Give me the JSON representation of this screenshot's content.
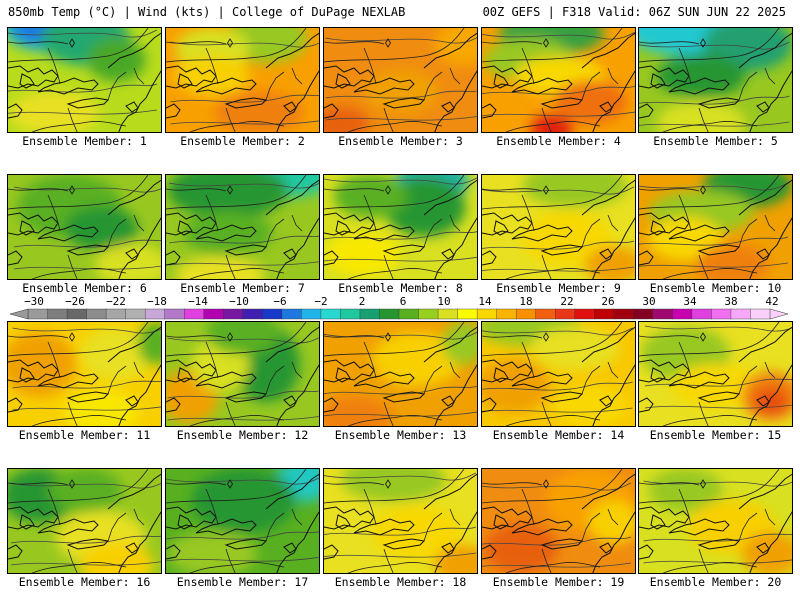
{
  "header": {
    "left": "850mb Temp (°C) | Wind (kts) | College of DuPage NEXLAB",
    "right": "00Z GEFS | F318 Valid: 06Z SUN JUN 22 2025"
  },
  "colorbar": {
    "tick_labels": [
      "−30",
      "−26",
      "−22",
      "−18",
      "−14",
      "−10",
      "−6",
      "−2",
      "2",
      "6",
      "10",
      "14",
      "18",
      "22",
      "26",
      "30",
      "34",
      "38",
      "42"
    ],
    "colors": [
      "#9a9a9a",
      "#7e7e7e",
      "#686868",
      "#8c8c8c",
      "#a6a6a6",
      "#b0b0b0",
      "#c8a8d8",
      "#b478c8",
      "#e040e0",
      "#b000b0",
      "#7818a0",
      "#4020b0",
      "#1838c8",
      "#1e78e0",
      "#20b4e8",
      "#28d8d0",
      "#20c8a0",
      "#18a070",
      "#289630",
      "#58b020",
      "#98d020",
      "#d8e020",
      "#fcfc00",
      "#f8d800",
      "#f8b400",
      "#f89000",
      "#f06010",
      "#e83818",
      "#e01010",
      "#c00000",
      "#a00010",
      "#840020",
      "#a00870",
      "#c800b0",
      "#e040e0",
      "#f070f0",
      "#f8a8f8",
      "#f8d0f8"
    ]
  },
  "panels": [
    {
      "label": "Ensemble Member: 1",
      "base": "#b8dc1c",
      "blobs": [
        [
          "#18b4c8",
          0.3,
          0.0,
          0.6,
          0.35
        ],
        [
          "#1e78e0",
          0.25,
          0.0,
          0.35,
          0.2
        ],
        [
          "#20a870",
          0.5,
          0.1,
          0.5,
          0.4
        ],
        [
          "#48a828",
          0.7,
          0.3,
          0.3,
          0.3
        ],
        [
          "#e8e020",
          0.3,
          0.8,
          0.5,
          0.3
        ]
      ]
    },
    {
      "label": "Ensemble Member: 2",
      "base": "#f8a000",
      "blobs": [
        [
          "#98c820",
          0.65,
          0.1,
          0.45,
          0.35
        ],
        [
          "#d8e020",
          0.3,
          0.2,
          0.4,
          0.3
        ],
        [
          "#f8d000",
          0.3,
          0.45,
          0.4,
          0.25
        ],
        [
          "#f08010",
          0.6,
          0.8,
          0.5,
          0.3
        ]
      ]
    },
    {
      "label": "Ensemble Member: 3",
      "base": "#f08c10",
      "blobs": [
        [
          "#f8a800",
          0.9,
          0.15,
          0.3,
          0.3
        ],
        [
          "#f0a000",
          0.5,
          0.6,
          0.4,
          0.3
        ],
        [
          "#e86010",
          0.1,
          0.9,
          0.3,
          0.2
        ]
      ]
    },
    {
      "label": "Ensemble Member: 4",
      "base": "#f8a000",
      "blobs": [
        [
          "#38a040",
          0.45,
          0.05,
          0.6,
          0.3
        ],
        [
          "#98c820",
          0.3,
          0.3,
          0.5,
          0.3
        ],
        [
          "#f8d800",
          0.5,
          0.45,
          0.5,
          0.25
        ],
        [
          "#f07010",
          0.7,
          0.7,
          0.4,
          0.3
        ],
        [
          "#e02010",
          0.45,
          0.95,
          0.2,
          0.15
        ]
      ]
    },
    {
      "label": "Ensemble Member: 5",
      "base": "#98c820",
      "blobs": [
        [
          "#20c8d0",
          0.3,
          0.0,
          0.7,
          0.4
        ],
        [
          "#20a070",
          0.7,
          0.15,
          0.5,
          0.4
        ],
        [
          "#289630",
          0.4,
          0.45,
          0.5,
          0.3
        ],
        [
          "#d8e020",
          0.4,
          0.9,
          0.5,
          0.3
        ]
      ]
    },
    {
      "label": "Ensemble Member: 6",
      "base": "#98c820",
      "blobs": [
        [
          "#58b020",
          0.4,
          0.3,
          0.6,
          0.5
        ],
        [
          "#289630",
          0.6,
          0.5,
          0.4,
          0.3
        ],
        [
          "#d8e020",
          0.8,
          0.85,
          0.4,
          0.3
        ]
      ]
    },
    {
      "label": "Ensemble Member: 7",
      "base": "#98c820",
      "blobs": [
        [
          "#20c8a0",
          0.8,
          0.0,
          0.5,
          0.3
        ],
        [
          "#289630",
          0.4,
          0.15,
          0.7,
          0.4
        ],
        [
          "#58b020",
          0.4,
          0.55,
          0.5,
          0.3
        ],
        [
          "#e8e020",
          0.35,
          0.95,
          0.5,
          0.25
        ]
      ]
    },
    {
      "label": "Ensemble Member: 8",
      "base": "#d8e020",
      "blobs": [
        [
          "#20b4a0",
          0.7,
          0.05,
          0.4,
          0.3
        ],
        [
          "#289630",
          0.65,
          0.3,
          0.45,
          0.45
        ],
        [
          "#58b020",
          0.3,
          0.2,
          0.4,
          0.3
        ],
        [
          "#f8e800",
          0.25,
          0.75,
          0.4,
          0.3
        ]
      ]
    },
    {
      "label": "Ensemble Member: 9",
      "base": "#e8e020",
      "blobs": [
        [
          "#98c820",
          0.6,
          0.1,
          0.6,
          0.3
        ],
        [
          "#f8d800",
          0.55,
          0.6,
          0.5,
          0.4
        ],
        [
          "#f0a000",
          0.85,
          0.85,
          0.3,
          0.25
        ]
      ]
    },
    {
      "label": "Ensemble Member: 10",
      "base": "#f0a000",
      "blobs": [
        [
          "#289630",
          0.7,
          0.1,
          0.5,
          0.3
        ],
        [
          "#98c820",
          0.4,
          0.35,
          0.6,
          0.3
        ],
        [
          "#f8d800",
          0.3,
          0.6,
          0.4,
          0.3
        ],
        [
          "#f08010",
          0.6,
          0.85,
          0.4,
          0.3
        ]
      ]
    },
    {
      "label": "Ensemble Member: 11",
      "base": "#f8d000",
      "blobs": [
        [
          "#f0a000",
          0.2,
          0.4,
          0.4,
          0.5
        ],
        [
          "#e8e020",
          0.7,
          0.3,
          0.4,
          0.4
        ],
        [
          "#58b020",
          0.95,
          0.2,
          0.15,
          0.3
        ],
        [
          "#f8e800",
          0.6,
          0.85,
          0.4,
          0.3
        ]
      ]
    },
    {
      "label": "Ensemble Member: 12",
      "base": "#98c820",
      "blobs": [
        [
          "#289630",
          0.65,
          0.4,
          0.35,
          0.6
        ],
        [
          "#f0a000",
          0.15,
          0.7,
          0.3,
          0.4
        ],
        [
          "#d8e020",
          0.35,
          0.4,
          0.3,
          0.4
        ],
        [
          "#58b020",
          0.5,
          0.1,
          0.4,
          0.3
        ]
      ]
    },
    {
      "label": "Ensemble Member: 13",
      "base": "#f0a000",
      "blobs": [
        [
          "#f8d000",
          0.6,
          0.35,
          0.5,
          0.4
        ],
        [
          "#98c820",
          0.9,
          0.2,
          0.2,
          0.3
        ],
        [
          "#f08010",
          0.2,
          0.9,
          0.4,
          0.3
        ]
      ]
    },
    {
      "label": "Ensemble Member: 14",
      "base": "#f8c800",
      "blobs": [
        [
          "#98c820",
          0.3,
          0.05,
          0.6,
          0.25
        ],
        [
          "#e8e020",
          0.6,
          0.25,
          0.5,
          0.3
        ],
        [
          "#f0a000",
          0.2,
          0.6,
          0.4,
          0.4
        ],
        [
          "#f8d800",
          0.7,
          0.8,
          0.4,
          0.3
        ]
      ]
    },
    {
      "label": "Ensemble Member: 15",
      "base": "#e8e020",
      "blobs": [
        [
          "#98c820",
          0.3,
          0.3,
          0.5,
          0.4
        ],
        [
          "#f8d800",
          0.5,
          0.6,
          0.5,
          0.3
        ],
        [
          "#f08010",
          0.85,
          0.7,
          0.3,
          0.35
        ],
        [
          "#e85010",
          0.85,
          0.75,
          0.15,
          0.15
        ]
      ]
    },
    {
      "label": "Ensemble Member: 16",
      "base": "#98c820",
      "blobs": [
        [
          "#289630",
          0.2,
          0.25,
          0.4,
          0.4
        ],
        [
          "#58b020",
          0.5,
          0.2,
          0.4,
          0.3
        ],
        [
          "#e8e020",
          0.6,
          0.65,
          0.5,
          0.4
        ],
        [
          "#f8d000",
          0.7,
          0.9,
          0.4,
          0.3
        ]
      ]
    },
    {
      "label": "Ensemble Member: 17",
      "base": "#58b020",
      "blobs": [
        [
          "#20c8c0",
          0.9,
          0.1,
          0.3,
          0.3
        ],
        [
          "#289630",
          0.5,
          0.3,
          0.6,
          0.5
        ],
        [
          "#98c820",
          0.3,
          0.8,
          0.5,
          0.3
        ]
      ]
    },
    {
      "label": "Ensemble Member: 18",
      "base": "#e8e020",
      "blobs": [
        [
          "#98c820",
          0.45,
          0.1,
          0.6,
          0.3
        ],
        [
          "#f8d800",
          0.6,
          0.6,
          0.5,
          0.4
        ],
        [
          "#f0a000",
          0.9,
          0.9,
          0.3,
          0.25
        ]
      ]
    },
    {
      "label": "Ensemble Member: 19",
      "base": "#f08c10",
      "blobs": [
        [
          "#f8a000",
          0.7,
          0.3,
          0.5,
          0.5
        ],
        [
          "#e86010",
          0.25,
          0.75,
          0.4,
          0.35
        ],
        [
          "#f8d000",
          0.85,
          0.5,
          0.25,
          0.3
        ]
      ]
    },
    {
      "label": "Ensemble Member: 20",
      "base": "#d8e020",
      "blobs": [
        [
          "#98c820",
          0.3,
          0.2,
          0.4,
          0.3
        ],
        [
          "#f8d000",
          0.6,
          0.55,
          0.5,
          0.4
        ],
        [
          "#f0a000",
          0.85,
          0.8,
          0.3,
          0.3
        ]
      ]
    }
  ]
}
